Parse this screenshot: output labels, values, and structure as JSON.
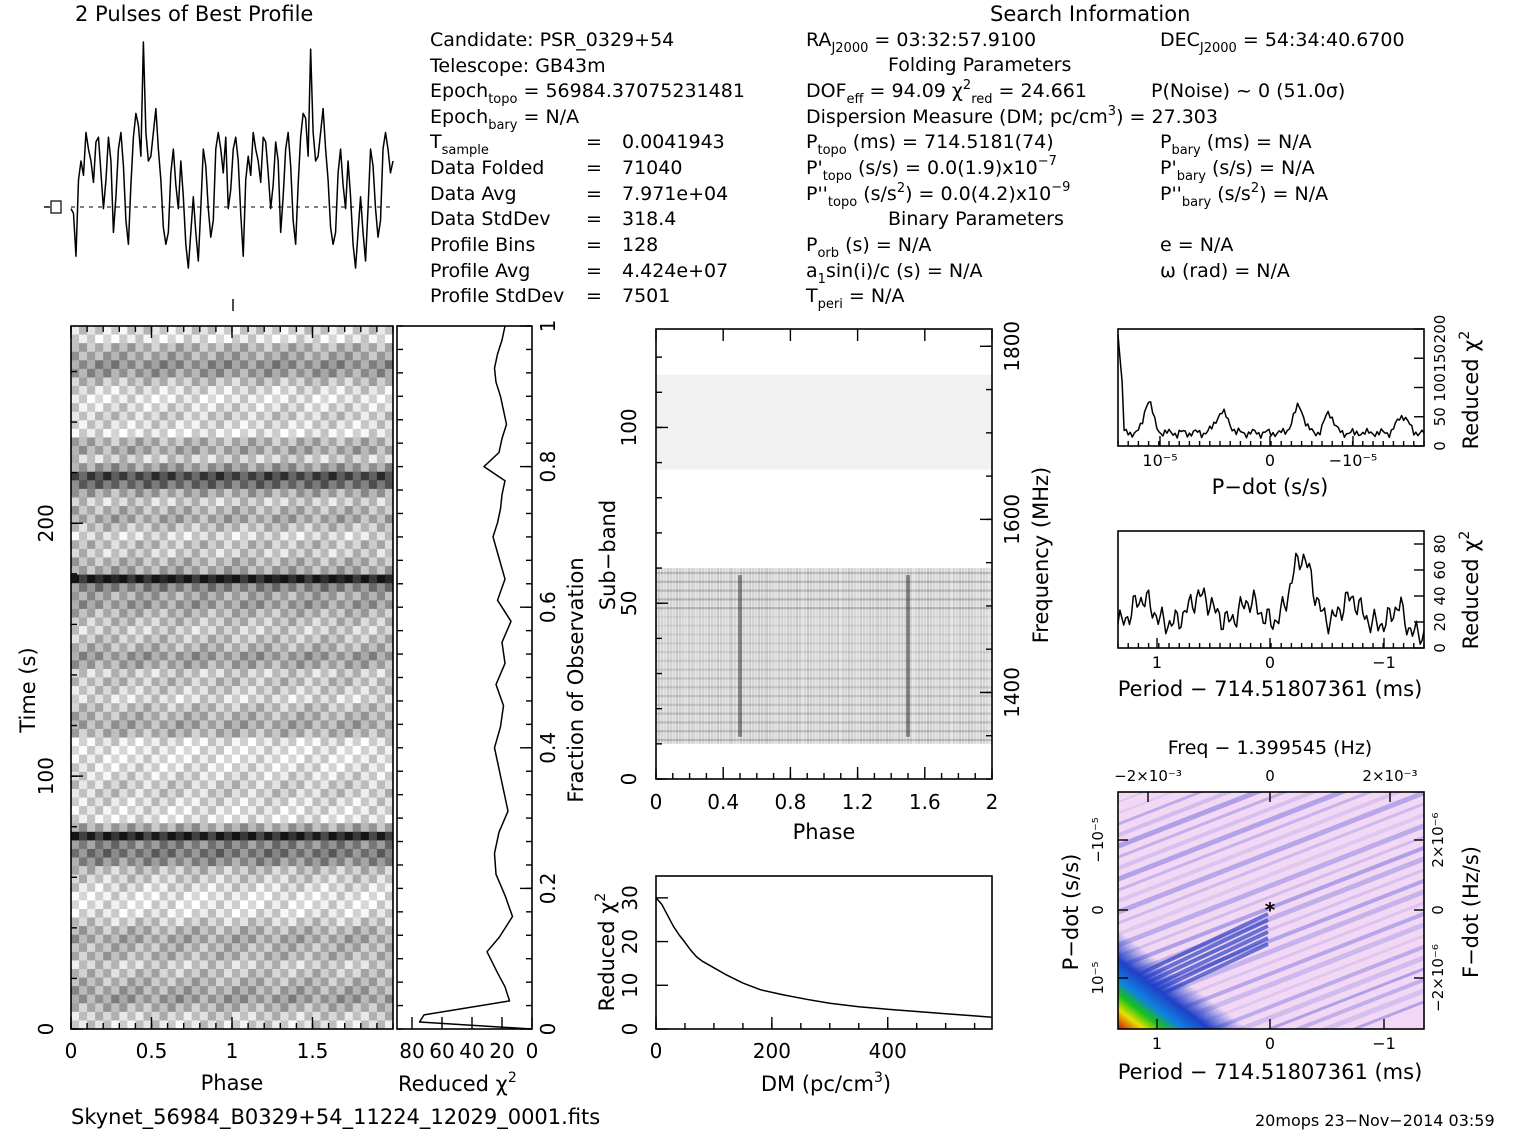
{
  "titles": {
    "profile_title": "2 Pulses of Best Profile",
    "search_info": "Search Information",
    "folding_params": "Folding Parameters",
    "binary_params": "Binary Parameters"
  },
  "info": {
    "candidate": "Candidate:  PSR_0329+54",
    "telescope": "Telescope:  GB43m",
    "epoch_topo": "56984.37075231481",
    "epoch_bary": "N/A",
    "t_sample": "0.0041943",
    "data_folded": "71040",
    "data_avg": "7.971e+04",
    "data_stddev": "318.4",
    "profile_bins": "128",
    "profile_avg": "4.424e+07",
    "profile_stddev": "7501",
    "ra": "03:32:57.9100",
    "dec": "54:34:40.6700",
    "dof_eff": "94.09",
    "chi2_red": "24.661",
    "p_noise": "P(Noise) ~ 0   (51.0σ)",
    "dm_text": "27.303",
    "p_topo": "714.5181(74)",
    "p_bary": "N/A",
    "pd_topo": "0.0(1.9)x10",
    "pd_topo_exp": "−7",
    "pd_bary": "N/A",
    "pdd_topo": "0.0(4.2)x10",
    "pdd_topo_exp": "−9",
    "pdd_bary": "N/A",
    "p_orb": "N/A",
    "a1sini": "N/A",
    "t_peri": "N/A",
    "e": "N/A",
    "omega": "N/A"
  },
  "footer": {
    "filename": "Skynet_56984_B0329+54_11224_12029_0001.fits",
    "stamp": "20mops 23−Nov−2014 03:59"
  },
  "chart_data": [
    {
      "name": "profile",
      "type": "line",
      "title": "2 Pulses of Best Profile",
      "xlim": [
        0,
        2
      ],
      "note_peaks_at_phase": [
        0.48,
        1.48
      ],
      "values": [
        0.3,
        0.28,
        0.1,
        0.42,
        0.5,
        0.44,
        0.62,
        0.55,
        0.5,
        0.41,
        0.58,
        0.6,
        0.45,
        0.3,
        0.42,
        0.6,
        0.5,
        0.2,
        0.35,
        0.55,
        0.62,
        0.48,
        0.25,
        0.15,
        0.4,
        0.6,
        0.7,
        0.65,
        0.52,
        1.0,
        0.62,
        0.5,
        0.52,
        0.62,
        0.72,
        0.55,
        0.42,
        0.22,
        0.15,
        0.2,
        0.45,
        0.55,
        0.4,
        0.3,
        0.5,
        0.35,
        0.15,
        0.05,
        0.2,
        0.35,
        0.2,
        0.08,
        0.3,
        0.55,
        0.48,
        0.3,
        0.18,
        0.25,
        0.55,
        0.62,
        0.55,
        0.45,
        0.6,
        0.3,
        0.38,
        0.55,
        0.6,
        0.5,
        0.28,
        0.1,
        0.42,
        0.52,
        0.44,
        0.62,
        0.55,
        0.5,
        0.41,
        0.6,
        0.58,
        0.45,
        0.3,
        0.4,
        0.58,
        0.5,
        0.2,
        0.35,
        0.55,
        0.62,
        0.48,
        0.25,
        0.15,
        0.4,
        0.6,
        0.7,
        0.68,
        0.52,
        0.97,
        0.62,
        0.5,
        0.52,
        0.62,
        0.72,
        0.55,
        0.42,
        0.22,
        0.15,
        0.2,
        0.45,
        0.55,
        0.4,
        0.3,
        0.5,
        0.35,
        0.15,
        0.05,
        0.2,
        0.35,
        0.2,
        0.08,
        0.3,
        0.55,
        0.48,
        0.3,
        0.18,
        0.25,
        0.55,
        0.62,
        0.55,
        0.45,
        0.5
      ]
    },
    {
      "name": "time-phase",
      "type": "heatmap",
      "xlabel": "Phase",
      "ylabel": "Time (s)",
      "xlim": [
        0,
        2
      ],
      "ylim": [
        0,
        278
      ],
      "x_ticks": [
        "0",
        "0.5",
        "1",
        "1.5"
      ],
      "y_ticks": [
        "0",
        "100",
        "200"
      ],
      "row_darkness": [
        0.15,
        0.1,
        0.3,
        0.35,
        0.45,
        0.4,
        0.25,
        0.15,
        0.1,
        0.15,
        0.2,
        0.15,
        0.1,
        0.3,
        0.35,
        0.2,
        0.4,
        0.75,
        0.6,
        0.35,
        0.2,
        0.3,
        0.35,
        0.25,
        0.15,
        0.25,
        0.2,
        0.3,
        0.35,
        0.95,
        0.5,
        0.35,
        0.4,
        0.3,
        0.25,
        0.2,
        0.25,
        0.3,
        0.4,
        0.35,
        0.2,
        0.25,
        0.2,
        0.15,
        0.25,
        0.3,
        0.35,
        0.3,
        0.12,
        0.1,
        0.1,
        0.12,
        0.15,
        0.2,
        0.2,
        0.15,
        0.12,
        0.1,
        0.35,
        0.9,
        0.5,
        0.55,
        0.45,
        0.25,
        0.2,
        0.15,
        0.1,
        0.1,
        0.12,
        0.2,
        0.3,
        0.35,
        0.3,
        0.3,
        0.2,
        0.25,
        0.3,
        0.35,
        0.4,
        0.3,
        0.2,
        0.15
      ]
    },
    {
      "name": "chi2-vs-time",
      "type": "line",
      "xlabel": "Reduced χ²",
      "ylabel": "Fraction of Observation",
      "xlim": [
        90,
        0
      ],
      "ylim": [
        0,
        1
      ],
      "x_ticks": [
        "80",
        "60",
        "40",
        "20",
        "0"
      ],
      "y_ticks": [
        "0",
        "0.2",
        "0.4",
        "0.6",
        "0.8",
        "1"
      ],
      "x": [
        0,
        75,
        72,
        15,
        18,
        23,
        30,
        22,
        13,
        18,
        24,
        25,
        22,
        16,
        19,
        22,
        25,
        21,
        19,
        24,
        18,
        20,
        14,
        23,
        18,
        22,
        26,
        23,
        21,
        20,
        18,
        32,
        22,
        20,
        17,
        19,
        21,
        24,
        25,
        23,
        20,
        18
      ],
      "y": [
        0,
        0.01,
        0.02,
        0.04,
        0.06,
        0.08,
        0.11,
        0.13,
        0.16,
        0.19,
        0.22,
        0.25,
        0.28,
        0.31,
        0.34,
        0.37,
        0.4,
        0.43,
        0.46,
        0.49,
        0.52,
        0.55,
        0.58,
        0.61,
        0.64,
        0.67,
        0.7,
        0.72,
        0.74,
        0.76,
        0.78,
        0.8,
        0.82,
        0.84,
        0.86,
        0.88,
        0.9,
        0.92,
        0.94,
        0.96,
        0.98,
        1.0
      ]
    },
    {
      "name": "subband-phase",
      "type": "heatmap",
      "xlabel": "Phase",
      "ylabel": "Sub-band",
      "y2label": "Frequency (MHz)",
      "xlim": [
        0,
        2
      ],
      "ylim": [
        0,
        128
      ],
      "x_ticks": [
        "0",
        "0.4",
        "0.8",
        "1.2",
        "1.6",
        "2"
      ],
      "y_ticks": [
        "0",
        "50",
        "100"
      ],
      "y2_ticks": [
        "1400",
        "1600",
        "1800"
      ]
    },
    {
      "name": "chi2-vs-dm",
      "type": "line",
      "xlabel": "DM (pc/cm³)",
      "ylabel": "Reduced χ²",
      "xlim": [
        0,
        580
      ],
      "ylim": [
        0,
        35
      ],
      "x_ticks": [
        "0",
        "200",
        "400"
      ],
      "y_ticks": [
        "0",
        "10",
        "20",
        "30"
      ],
      "x": [
        0,
        10,
        20,
        30,
        40,
        50,
        60,
        70,
        80,
        100,
        120,
        150,
        180,
        220,
        260,
        300,
        350,
        400,
        450,
        500,
        550,
        580
      ],
      "y": [
        30,
        28.5,
        26,
        23.5,
        21.5,
        19.8,
        18,
        16.5,
        15.5,
        14,
        12.5,
        10.5,
        9,
        7.8,
        6.8,
        5.9,
        5.1,
        4.5,
        4,
        3.5,
        3,
        2.7
      ]
    },
    {
      "name": "chi2-vs-pdot",
      "type": "line",
      "xlabel": "P−dot (s/s)",
      "ylabel": "Reduced χ²",
      "ylim": [
        0,
        200
      ],
      "x_ticks": [
        "10⁻⁵",
        "0",
        "−10⁻⁵"
      ],
      "y_ticks": [
        "0",
        "50",
        "100",
        "150",
        "200"
      ]
    },
    {
      "name": "chi2-vs-period",
      "type": "line",
      "xlabel": "Period − 714.51807361 (ms)",
      "ylabel": "Reduced χ²",
      "ylim": [
        0,
        90
      ],
      "x_ticks": [
        "1",
        "0",
        "−1"
      ],
      "y_ticks": [
        "0",
        "20",
        "40",
        "60",
        "80"
      ]
    },
    {
      "name": "p-pdot-plane",
      "type": "heatmap",
      "title": "Freq − 1.399545 (Hz)",
      "xlabel": "Period − 714.51807361 (ms)",
      "ylabel": "P−dot (s/s)",
      "y2label": "F−dot (Hz/s)",
      "x_ticks": [
        "1",
        "0",
        "−1"
      ],
      "x2_ticks": [
        "−2×10⁻³",
        "0",
        "2×10⁻³"
      ],
      "y_ticks": [
        "10⁻⁵",
        "0",
        "−10⁻⁵"
      ],
      "y2_ticks": [
        "−2×10⁻⁶",
        "0",
        "2×10⁻⁶"
      ]
    }
  ]
}
